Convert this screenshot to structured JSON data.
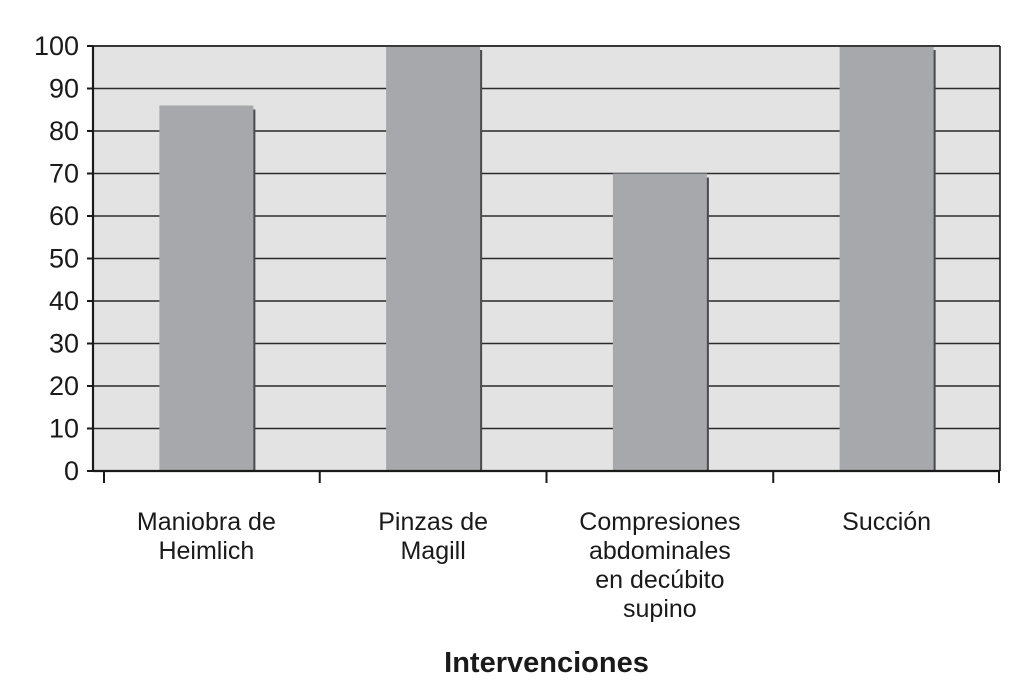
{
  "chart_data": {
    "type": "bar",
    "categories": [
      [
        "Maniobra de",
        "Heimlich"
      ],
      [
        "Pinzas de",
        "Magill"
      ],
      [
        "Compresiones",
        "abdominales",
        "en decúbito",
        "supino"
      ],
      [
        "Succión"
      ]
    ],
    "values": [
      86,
      100,
      70,
      100
    ],
    "title": "",
    "xlabel": "Intervenciones",
    "ylabel": "",
    "ylim": [
      0,
      100
    ],
    "yticks": [
      0,
      10,
      20,
      30,
      40,
      50,
      60,
      70,
      80,
      90,
      100
    ],
    "grid": true,
    "legend": "none",
    "colors": {
      "plot_background": "#e3e3e3",
      "bar": "#a7a8ab",
      "bar_shadow": "#4a4a4a",
      "gridline": "#2b2b2b",
      "axis": "#1a1a1a",
      "text": "#1a1a1a"
    }
  }
}
